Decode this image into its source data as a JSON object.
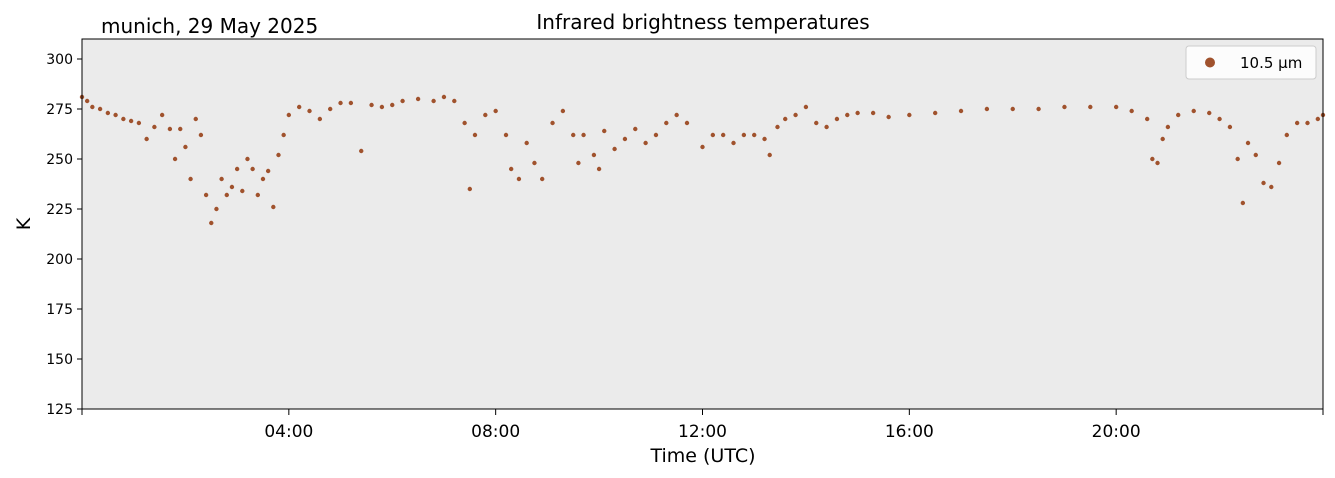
{
  "chart_data": {
    "type": "scatter",
    "title": "Infrared brightness temperatures",
    "location_date": "munich, 29 May 2025",
    "xlabel": "Time (UTC)",
    "ylabel": "K",
    "ylim": [
      125,
      310
    ],
    "xlim_hours": [
      0,
      24
    ],
    "yticks": [
      125,
      150,
      175,
      200,
      225,
      250,
      275,
      300
    ],
    "xticks": [
      {
        "hour": 4,
        "label": "04:00"
      },
      {
        "hour": 8,
        "label": "08:00"
      },
      {
        "hour": 12,
        "label": "12:00"
      },
      {
        "hour": 16,
        "label": "16:00"
      },
      {
        "hour": 20,
        "label": "20:00"
      }
    ],
    "grid": false,
    "legend_position": "top-right",
    "plot_background": "#ebebeb",
    "series": [
      {
        "name": "10.5 µm",
        "color": "#a0522d",
        "points": [
          [
            0.0,
            281
          ],
          [
            0.1,
            279
          ],
          [
            0.2,
            276
          ],
          [
            0.35,
            275
          ],
          [
            0.5,
            273
          ],
          [
            0.65,
            272
          ],
          [
            0.8,
            270
          ],
          [
            0.95,
            269
          ],
          [
            1.1,
            268
          ],
          [
            1.25,
            260
          ],
          [
            1.4,
            266
          ],
          [
            1.55,
            272
          ],
          [
            1.7,
            265
          ],
          [
            1.8,
            250
          ],
          [
            1.9,
            265
          ],
          [
            2.0,
            256
          ],
          [
            2.1,
            240
          ],
          [
            2.2,
            270
          ],
          [
            2.3,
            262
          ],
          [
            2.4,
            232
          ],
          [
            2.5,
            218
          ],
          [
            2.6,
            225
          ],
          [
            2.7,
            240
          ],
          [
            2.8,
            232
          ],
          [
            2.9,
            236
          ],
          [
            3.0,
            245
          ],
          [
            3.1,
            234
          ],
          [
            3.2,
            250
          ],
          [
            3.3,
            245
          ],
          [
            3.4,
            232
          ],
          [
            3.5,
            240
          ],
          [
            3.6,
            244
          ],
          [
            3.7,
            226
          ],
          [
            3.8,
            252
          ],
          [
            3.9,
            262
          ],
          [
            4.0,
            272
          ],
          [
            4.2,
            276
          ],
          [
            4.4,
            274
          ],
          [
            4.6,
            270
          ],
          [
            4.8,
            275
          ],
          [
            5.0,
            278
          ],
          [
            5.2,
            278
          ],
          [
            5.4,
            254
          ],
          [
            5.6,
            277
          ],
          [
            5.8,
            276
          ],
          [
            6.0,
            277
          ],
          [
            6.2,
            279
          ],
          [
            6.5,
            280
          ],
          [
            6.8,
            279
          ],
          [
            7.0,
            281
          ],
          [
            7.2,
            279
          ],
          [
            7.4,
            268
          ],
          [
            7.5,
            235
          ],
          [
            7.6,
            262
          ],
          [
            7.8,
            272
          ],
          [
            8.0,
            274
          ],
          [
            8.2,
            262
          ],
          [
            8.3,
            245
          ],
          [
            8.45,
            240
          ],
          [
            8.6,
            258
          ],
          [
            8.75,
            248
          ],
          [
            8.9,
            240
          ],
          [
            9.1,
            268
          ],
          [
            9.3,
            274
          ],
          [
            9.5,
            262
          ],
          [
            9.6,
            248
          ],
          [
            9.7,
            262
          ],
          [
            9.9,
            252
          ],
          [
            10.0,
            245
          ],
          [
            10.1,
            264
          ],
          [
            10.3,
            255
          ],
          [
            10.5,
            260
          ],
          [
            10.7,
            265
          ],
          [
            10.9,
            258
          ],
          [
            11.1,
            262
          ],
          [
            11.3,
            268
          ],
          [
            11.5,
            272
          ],
          [
            11.7,
            268
          ],
          [
            12.0,
            256
          ],
          [
            12.2,
            262
          ],
          [
            12.4,
            262
          ],
          [
            12.6,
            258
          ],
          [
            12.8,
            262
          ],
          [
            13.0,
            262
          ],
          [
            13.2,
            260
          ],
          [
            13.3,
            252
          ],
          [
            13.45,
            266
          ],
          [
            13.6,
            270
          ],
          [
            13.8,
            272
          ],
          [
            14.0,
            276
          ],
          [
            14.2,
            268
          ],
          [
            14.4,
            266
          ],
          [
            14.6,
            270
          ],
          [
            14.8,
            272
          ],
          [
            15.0,
            273
          ],
          [
            15.3,
            273
          ],
          [
            15.6,
            271
          ],
          [
            16.0,
            272
          ],
          [
            16.5,
            273
          ],
          [
            17.0,
            274
          ],
          [
            17.5,
            275
          ],
          [
            18.0,
            275
          ],
          [
            18.5,
            275
          ],
          [
            19.0,
            276
          ],
          [
            19.5,
            276
          ],
          [
            20.0,
            276
          ],
          [
            20.3,
            274
          ],
          [
            20.6,
            270
          ],
          [
            20.7,
            250
          ],
          [
            20.8,
            248
          ],
          [
            20.9,
            260
          ],
          [
            21.0,
            266
          ],
          [
            21.2,
            272
          ],
          [
            21.5,
            274
          ],
          [
            21.8,
            273
          ],
          [
            22.0,
            270
          ],
          [
            22.2,
            266
          ],
          [
            22.35,
            250
          ],
          [
            22.45,
            228
          ],
          [
            22.55,
            258
          ],
          [
            22.7,
            252
          ],
          [
            22.85,
            238
          ],
          [
            23.0,
            236
          ],
          [
            23.15,
            248
          ],
          [
            23.3,
            262
          ],
          [
            23.5,
            268
          ],
          [
            23.7,
            268
          ],
          [
            23.9,
            270
          ],
          [
            24.0,
            272
          ]
        ]
      }
    ]
  }
}
